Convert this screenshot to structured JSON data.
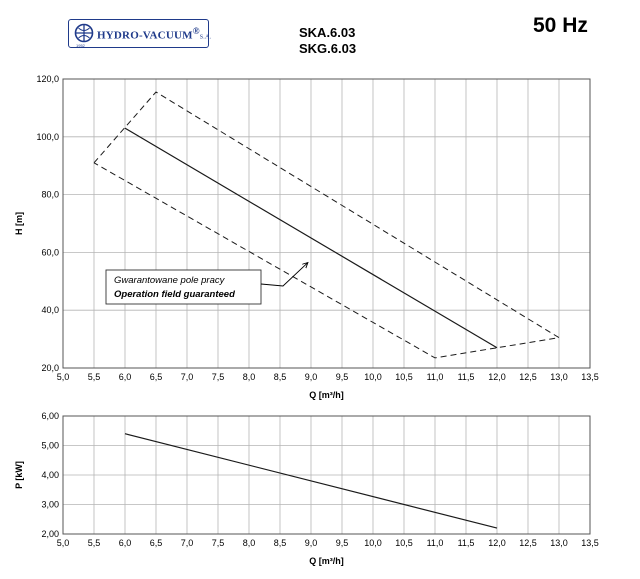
{
  "header": {
    "logo_text": "HYDRO-VACUUM",
    "logo_suffix": "S.A.",
    "logo_year": "1952",
    "model_1": "SKA.6.03",
    "model_2": "SKG.6.03",
    "frequency": "50 Hz"
  },
  "chart_data": [
    {
      "type": "line",
      "xlabel": "Q [m³/h]",
      "ylabel": "H [m]",
      "xlim": [
        5.0,
        13.5
      ],
      "ylim": [
        20.0,
        120.0
      ],
      "x_ticks": [
        "5,0",
        "5,5",
        "6,0",
        "6,5",
        "7,0",
        "7,5",
        "8,0",
        "8,5",
        "9,0",
        "9,5",
        "10,0",
        "10,5",
        "11,0",
        "11,5",
        "12,0",
        "12,5",
        "13,0",
        "13,5"
      ],
      "y_ticks": [
        "20,0",
        "40,0",
        "60,0",
        "80,0",
        "100,0",
        "120,0"
      ],
      "grid": true,
      "series": [
        {
          "style": "solid",
          "x": [
            6.0,
            12.0
          ],
          "y": [
            103.0,
            27.0
          ]
        },
        {
          "style": "dashed",
          "x": [
            5.5,
            6.5,
            13.0,
            11.0,
            5.5
          ],
          "y": [
            91.0,
            115.5,
            30.5,
            23.5,
            91.0
          ]
        }
      ],
      "annotation": {
        "line1": "Gwarantowane pole pracy",
        "line2": "Operation field guaranteed",
        "arrow_to": [
          8.95,
          56.5
        ]
      }
    },
    {
      "type": "line",
      "xlabel": "Q [m³/h]",
      "ylabel": "P [kW]",
      "xlim": [
        5.0,
        13.5
      ],
      "ylim": [
        2.0,
        6.0
      ],
      "x_ticks": [
        "5,0",
        "5,5",
        "6,0",
        "6,5",
        "7,0",
        "7,5",
        "8,0",
        "8,5",
        "9,0",
        "9,5",
        "10,0",
        "10,5",
        "11,0",
        "11,5",
        "12,0",
        "12,5",
        "13,0",
        "13,5"
      ],
      "y_ticks": [
        "2,00",
        "3,00",
        "4,00",
        "5,00",
        "6,00"
      ],
      "grid": true,
      "series": [
        {
          "style": "solid",
          "x": [
            6.0,
            12.0
          ],
          "y": [
            5.4,
            2.2
          ]
        }
      ]
    }
  ]
}
